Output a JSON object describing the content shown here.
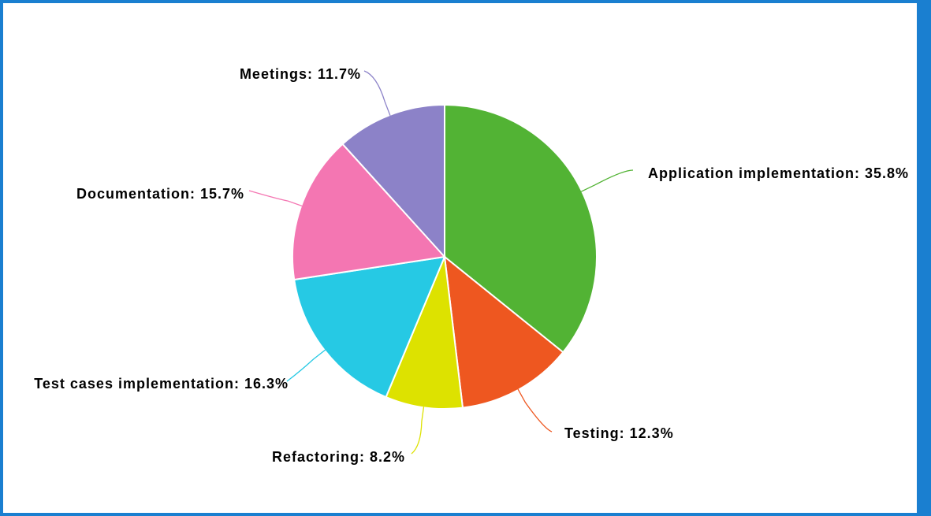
{
  "chart_data": {
    "type": "pie",
    "start_angle_deg": 0,
    "direction": "clockwise",
    "slices": [
      {
        "label": "Application implementation",
        "value": 35.8,
        "display": "Application implementation: 35.8%",
        "color": "#52b334"
      },
      {
        "label": "Testing",
        "value": 12.3,
        "display": "Testing: 12.3%",
        "color": "#ee5720"
      },
      {
        "label": "Refactoring",
        "value": 8.2,
        "display": "Refactoring: 8.2%",
        "color": "#dde200"
      },
      {
        "label": "Test cases implementation",
        "value": 16.3,
        "display": "Test cases implementation: 16.3%",
        "color": "#26c9e4"
      },
      {
        "label": "Documentation",
        "value": 15.7,
        "display": "Documentation: 15.7%",
        "color": "#f476b2"
      },
      {
        "label": "Meetings",
        "value": 11.7,
        "display": "Meetings: 11.7%",
        "color": "#8c82c8"
      }
    ]
  },
  "frame": {
    "border_color": "#1a7fd0"
  }
}
